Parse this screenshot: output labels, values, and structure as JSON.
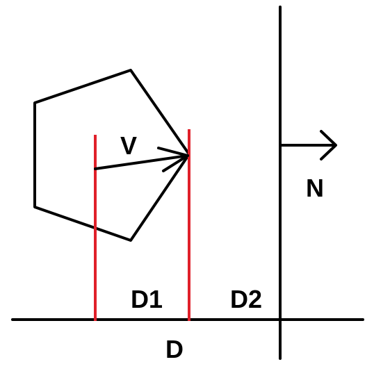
{
  "labels": {
    "v": "V",
    "n": "N",
    "d1": "D1",
    "d2": "D2",
    "d": "D"
  },
  "colors": {
    "stroke": "#000000",
    "projection": "#e0202a",
    "background": "#ffffff"
  }
}
